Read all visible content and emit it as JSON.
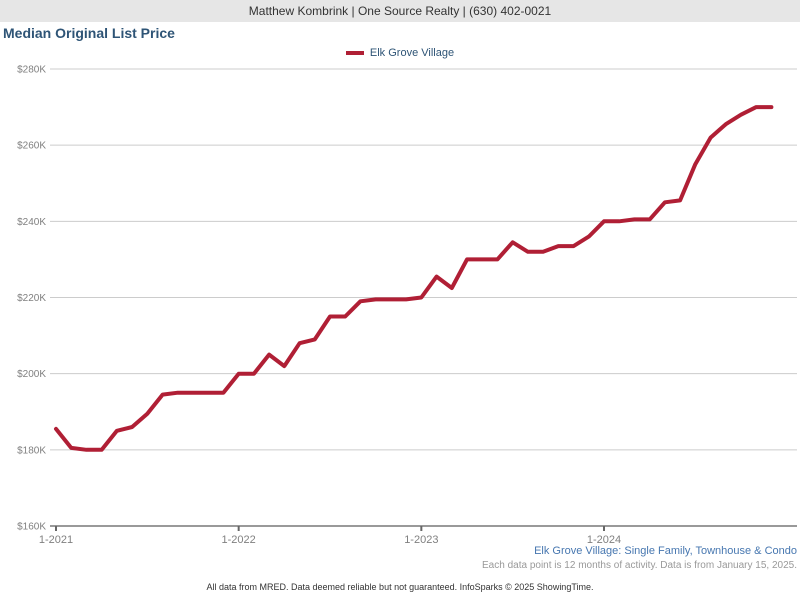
{
  "header": {
    "agent_info": "Matthew Kombrink | One Source Realty | (630) 402-0021"
  },
  "title": "Median Original List Price",
  "legend": {
    "label": "Elk Grove Village",
    "color": "#b01f35"
  },
  "chart_data": {
    "type": "line",
    "title": "Median Original List Price",
    "x_start": "1-2021",
    "x_end": "12-2024",
    "x_interval": "monthly",
    "series": [
      {
        "name": "Elk Grove Village",
        "color": "#b01f35",
        "values": [
          185.5,
          180.5,
          180,
          180,
          185,
          186,
          189.5,
          194.5,
          195,
          195,
          195,
          195,
          200,
          200,
          205,
          202,
          208,
          209,
          215,
          215,
          219,
          219.5,
          219.5,
          219.5,
          220,
          225.5,
          222.5,
          230,
          230,
          230,
          234.5,
          232,
          232,
          233.5,
          233.5,
          236,
          240,
          240,
          240.5,
          240.5,
          245,
          245.5,
          255,
          262,
          265.5,
          268,
          270,
          270
        ]
      }
    ],
    "values_unit": "USD thousands",
    "x_ticks": [
      {
        "label": "1-2021",
        "month_index": 0
      },
      {
        "label": "1-2022",
        "month_index": 12
      },
      {
        "label": "1-2023",
        "month_index": 24
      },
      {
        "label": "1-2024",
        "month_index": 36
      }
    ],
    "y_ticks": [
      {
        "label": "$280K",
        "value": 280
      },
      {
        "label": "$260K",
        "value": 260
      },
      {
        "label": "$240K",
        "value": 240
      },
      {
        "label": "$220K",
        "value": 220
      },
      {
        "label": "$200K",
        "value": 200
      },
      {
        "label": "$180K",
        "value": 180
      },
      {
        "label": "$160K",
        "value": 160
      }
    ],
    "ylim": [
      160,
      280
    ],
    "grid": "horizontal",
    "legend_position": "top-center",
    "colors": {
      "gridline": "#cccccc",
      "axis": "#999999",
      "tick": "#666666",
      "tick_label": "#808080"
    }
  },
  "footnotes": {
    "segment": "Elk Grove Village: Single Family, Townhouse & Condo",
    "data_note": "Each data point is 12 months of activity. Data is from January 15, 2025.",
    "disclaimer": "All data from MRED. Data deemed reliable but not guaranteed. InfoSparks © 2025 ShowingTime."
  }
}
